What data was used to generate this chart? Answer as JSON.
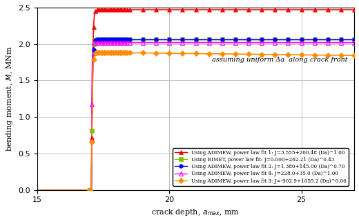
{
  "title": "",
  "xlabel": "crack depth, $a_{max}$, mm",
  "ylabel": "bending moment, $M$, MNm",
  "xlim": [
    15,
    27
  ],
  "ylim": [
    0.0,
    2.5
  ],
  "xticks": [
    15,
    20,
    25
  ],
  "yticks": [
    0.0,
    0.5,
    1.0,
    1.5,
    2.0,
    2.5
  ],
  "annotation": "assuming uniform Δa  along crack front",
  "series": [
    {
      "label": "Using ADIMEW, power law fit 1: J=3.555+200.48 (Da)^1.00",
      "color": "#ff0000",
      "marker": "^",
      "fillstyle": "full",
      "linewidth": 1.2,
      "markersize": 4,
      "plateau": 2.47,
      "k": 18.0,
      "a0": 17.05,
      "rise": 0.45
    },
    {
      "label": "Using BIMET, power law fit: J=0.000+262.21 (Da)^0.43",
      "color": "#80c000",
      "marker": "s",
      "fillstyle": "full",
      "linewidth": 1.2,
      "markersize": 4,
      "plateau": 2.06,
      "k": 25.0,
      "a0": 17.05,
      "rise": 0.35
    },
    {
      "label": "Using ADIMEW, power law fit 2: J=1.380+145.00 (Da)^0.70",
      "color": "#0000ff",
      "marker": "o",
      "fillstyle": "full",
      "linewidth": 1.2,
      "markersize": 4,
      "plateau": 2.06,
      "k": 20.0,
      "a0": 17.05,
      "rise": 0.42
    },
    {
      "label": "Using ADIMEW, power law fit 4: J=228.0+35.0 (Da)^1.00",
      "color": "#ff00ff",
      "marker": "^",
      "fillstyle": "none",
      "linewidth": 1.2,
      "markersize": 4,
      "plateau": 2.02,
      "k": 40.0,
      "a0": 17.05,
      "rise": 0.25
    },
    {
      "label": "Using ADIMEW, power law fit 3: J=-902.9+1055.2 (Da)^0.06",
      "color": "#ff8c00",
      "marker": "D",
      "fillstyle": "full",
      "linewidth": 1.2,
      "markersize": 4,
      "plateau": 1.88,
      "k": 22.0,
      "a0": 17.05,
      "rise": 0.4
    }
  ],
  "background_color": "#ffffff",
  "grid_color": "#c0c0c0"
}
